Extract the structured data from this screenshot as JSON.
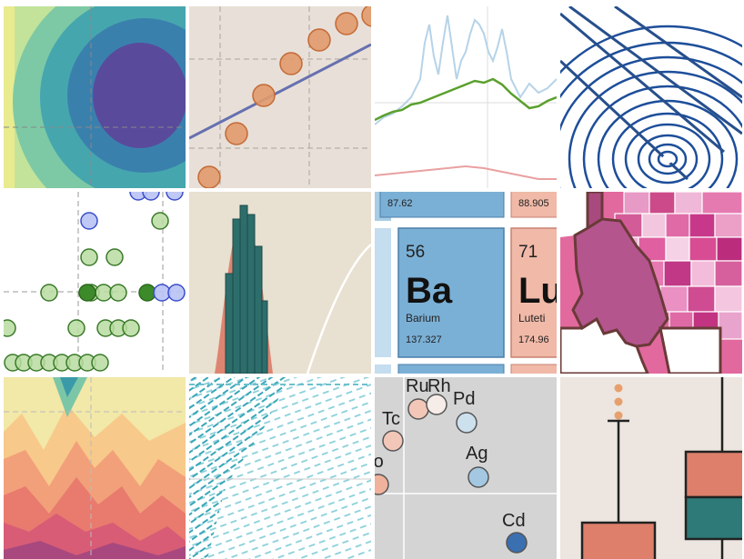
{
  "tiles": [
    {
      "name": "contour-field"
    },
    {
      "name": "scatter-with-regression"
    },
    {
      "name": "noisy-line-series"
    },
    {
      "name": "concentric-streamlines"
    },
    {
      "name": "categorical-dot-strips"
    },
    {
      "name": "histogram-with-kde"
    },
    {
      "name": "periodic-table-detail"
    },
    {
      "name": "choropleth-counties"
    },
    {
      "name": "stacked-area-contours"
    },
    {
      "name": "quiver-field"
    },
    {
      "name": "labeled-element-scatter"
    },
    {
      "name": "box-plots"
    }
  ],
  "periodic": {
    "top_left_mass": "87.62",
    "top_right_mass": "88.905",
    "ba_number": "56",
    "ba_symbol": "Ba",
    "ba_name": "Barium",
    "ba_mass": "137.327",
    "lu_number": "71",
    "lu_symbol": "Lu",
    "lu_name": "Luteti",
    "lu_mass": "174.96"
  },
  "elements": [
    {
      "label": "Rh"
    },
    {
      "label": "Ru"
    },
    {
      "label": "Pd"
    },
    {
      "label": "Tc"
    },
    {
      "label": "Ag"
    },
    {
      "label": "Mo"
    },
    {
      "label": "Cd"
    }
  ],
  "colors": {
    "bg_warm": "#e8e0d8",
    "bg_grey": "#d8d8d8",
    "orange": "#e19a6c",
    "blue_line": "#6670b0",
    "green": "#5aa02c",
    "light_blue": "#a8cce4",
    "teal": "#2d7a78",
    "salmon": "#dd7f6b"
  }
}
